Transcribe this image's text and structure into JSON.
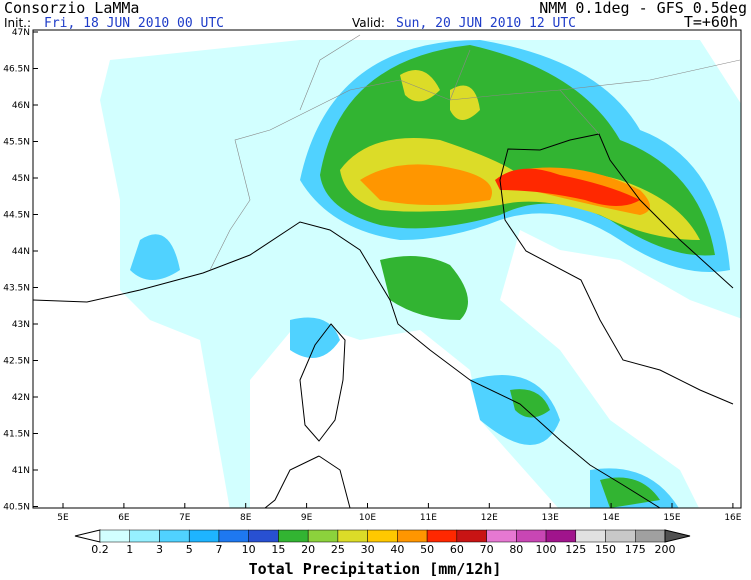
{
  "header": {
    "source": "Consorzio LaMMa",
    "model": "NMM 0.1deg - GFS 0.5deg",
    "init_label": "Init.:",
    "init_time": "Fri, 18 JUN 2010  00 UTC",
    "valid_label": "Valid:",
    "valid_time": "Sun, 20 JUN 2010  12 UTC",
    "lead": "T=+60h"
  },
  "map": {
    "lat_labels": [
      "47N",
      "46.5N",
      "46N",
      "45.5N",
      "45N",
      "44.5N",
      "44N",
      "43.5N",
      "43N",
      "42.5N",
      "42N",
      "41.5N",
      "41N",
      "40.5N"
    ],
    "lon_labels": [
      "5E",
      "6E",
      "7E",
      "8E",
      "9E",
      "10E",
      "11E",
      "12E",
      "13E",
      "14E",
      "15E",
      "16E"
    ]
  },
  "colorbar": {
    "title": "Total Precipitation [mm/12h]",
    "labels": [
      "0.2",
      "1",
      "3",
      "5",
      "7",
      "10",
      "15",
      "20",
      "25",
      "30",
      "40",
      "50",
      "60",
      "70",
      "80",
      "100",
      "125",
      "150",
      "175",
      "200"
    ],
    "colors": [
      "#ffffff",
      "#d2ffff",
      "#96f0ff",
      "#50d2ff",
      "#1eb4ff",
      "#1e78f0",
      "#2850d2",
      "#32b432",
      "#8cd23c",
      "#dcdc28",
      "#ffc800",
      "#ff9600",
      "#ff2800",
      "#c81414",
      "#e678d2",
      "#c846b4",
      "#a0148c",
      "#e1e1e1",
      "#c8c8c8",
      "#a0a0a0",
      "#787878",
      "#505050"
    ]
  }
}
